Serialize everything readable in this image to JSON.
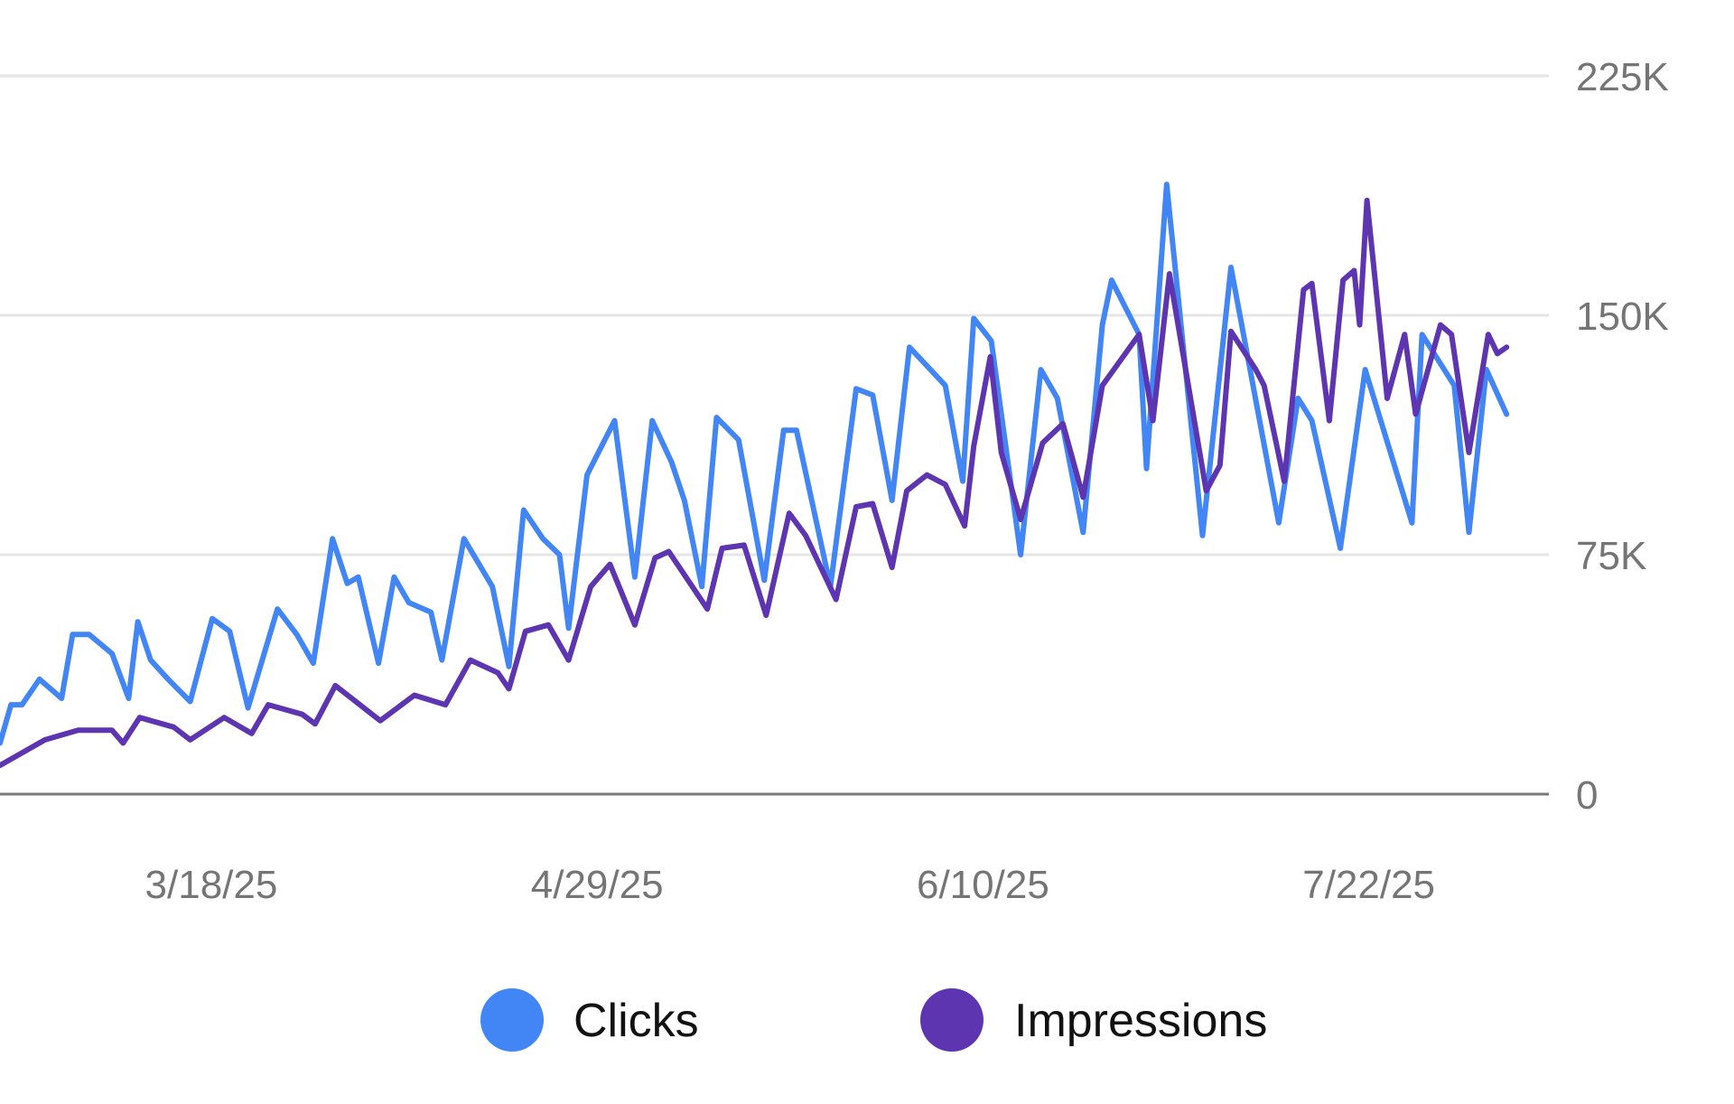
{
  "chart_data": {
    "type": "line",
    "title": "",
    "xlabel": "",
    "ylabel": "",
    "x_unit": "days since 2025-02-23",
    "x_start_date": "2025-02-23",
    "xlim": [
      0,
      168.6
    ],
    "ylim": [
      0,
      225000
    ],
    "grid": true,
    "legend_position": "bottom",
    "y_ticks": [
      {
        "value": 0,
        "label": "0"
      },
      {
        "value": 75000,
        "label": "75K"
      },
      {
        "value": 150000,
        "label": "150K"
      },
      {
        "value": 225000,
        "label": "225K"
      }
    ],
    "x_ticks": [
      {
        "value": 23,
        "label": "3/18/25"
      },
      {
        "value": 65,
        "label": "4/29/25"
      },
      {
        "value": 107,
        "label": "6/10/25"
      },
      {
        "value": 149,
        "label": "7/22/25"
      }
    ],
    "series": [
      {
        "name": "Clicks",
        "color": "#4285F4",
        "points": [
          [
            0,
            16
          ],
          [
            1.2,
            28
          ],
          [
            2.4,
            28
          ],
          [
            4.3,
            36
          ],
          [
            6.7,
            30
          ],
          [
            7.9,
            50
          ],
          [
            9.7,
            50
          ],
          [
            12.2,
            44
          ],
          [
            14,
            30
          ],
          [
            15,
            54
          ],
          [
            16.4,
            42
          ],
          [
            18.3,
            36
          ],
          [
            20.7,
            29
          ],
          [
            23.1,
            55
          ],
          [
            25,
            51
          ],
          [
            27,
            27
          ],
          [
            30.2,
            58
          ],
          [
            32.3,
            50
          ],
          [
            34.1,
            41
          ],
          [
            36.2,
            80
          ],
          [
            37.8,
            66
          ],
          [
            39,
            68
          ],
          [
            41.2,
            41
          ],
          [
            42.9,
            68
          ],
          [
            44.5,
            60
          ],
          [
            46.9,
            57
          ],
          [
            48.1,
            42
          ],
          [
            50.5,
            80
          ],
          [
            53.6,
            65
          ],
          [
            55.4,
            40
          ],
          [
            57,
            89
          ],
          [
            59.1,
            80
          ],
          [
            60.9,
            75
          ],
          [
            61.9,
            52
          ],
          [
            63.9,
            100
          ],
          [
            66.9,
            117
          ],
          [
            69.1,
            68
          ],
          [
            71,
            117
          ],
          [
            73.1,
            104
          ],
          [
            74.5,
            92
          ],
          [
            76.4,
            65
          ],
          [
            78,
            118
          ],
          [
            80.4,
            111
          ],
          [
            83.2,
            67
          ],
          [
            85.3,
            114
          ],
          [
            86.7,
            114
          ],
          [
            90.4,
            65
          ],
          [
            93.2,
            127
          ],
          [
            95,
            125
          ],
          [
            97.1,
            92
          ],
          [
            99,
            140
          ],
          [
            102.9,
            128
          ],
          [
            104.8,
            98
          ],
          [
            106,
            149
          ],
          [
            107.9,
            142
          ],
          [
            111.1,
            75
          ],
          [
            113.3,
            133
          ],
          [
            115.1,
            124
          ],
          [
            117.9,
            82
          ],
          [
            120,
            147
          ],
          [
            121,
            161
          ],
          [
            124,
            144
          ],
          [
            124.8,
            102
          ],
          [
            127,
            191
          ],
          [
            130.9,
            81
          ],
          [
            134,
            165
          ],
          [
            139.2,
            85
          ],
          [
            141.3,
            124
          ],
          [
            142.8,
            117
          ],
          [
            145.9,
            77
          ],
          [
            148.6,
            133
          ],
          [
            153.7,
            85
          ],
          [
            154.8,
            144
          ],
          [
            158.3,
            128
          ],
          [
            159.9,
            82
          ],
          [
            161.8,
            133
          ],
          [
            164,
            119
          ]
        ],
        "value_unit": "thousands"
      },
      {
        "name": "Impressions",
        "color": "#5E35B1",
        "points": [
          [
            0,
            9
          ],
          [
            4.9,
            17
          ],
          [
            8.5,
            20
          ],
          [
            12.2,
            20
          ],
          [
            13.4,
            16
          ],
          [
            15.2,
            24
          ],
          [
            18.9,
            21
          ],
          [
            20.7,
            17
          ],
          [
            24.4,
            24
          ],
          [
            27.4,
            19
          ],
          [
            29.2,
            28
          ],
          [
            32.9,
            25
          ],
          [
            34.3,
            22
          ],
          [
            36.5,
            34
          ],
          [
            41.4,
            23
          ],
          [
            45.1,
            31
          ],
          [
            48.5,
            28
          ],
          [
            51.2,
            42
          ],
          [
            54.2,
            38
          ],
          [
            55.4,
            33
          ],
          [
            57.2,
            51
          ],
          [
            59.7,
            53
          ],
          [
            61.9,
            42
          ],
          [
            64.3,
            65
          ],
          [
            66.4,
            72
          ],
          [
            69.1,
            53
          ],
          [
            71.3,
            74
          ],
          [
            72.8,
            76
          ],
          [
            74.9,
            67
          ],
          [
            77,
            58
          ],
          [
            78.6,
            77
          ],
          [
            81,
            78
          ],
          [
            83.4,
            56
          ],
          [
            85.9,
            88
          ],
          [
            87.7,
            81
          ],
          [
            91,
            61
          ],
          [
            93.2,
            90
          ],
          [
            95,
            91
          ],
          [
            97.1,
            71
          ],
          [
            98.7,
            95
          ],
          [
            100.9,
            100
          ],
          [
            102.9,
            97
          ],
          [
            105,
            84
          ],
          [
            106,
            109
          ],
          [
            107.8,
            137
          ],
          [
            109,
            107
          ],
          [
            111.1,
            86
          ],
          [
            113.5,
            110
          ],
          [
            115.7,
            116
          ],
          [
            117.9,
            93
          ],
          [
            120,
            128
          ],
          [
            124,
            144
          ],
          [
            125.5,
            117
          ],
          [
            127.3,
            163
          ],
          [
            131.3,
            95
          ],
          [
            132.8,
            103
          ],
          [
            134,
            145
          ],
          [
            136.7,
            133
          ],
          [
            137.6,
            128
          ],
          [
            139.8,
            98
          ],
          [
            141.9,
            158
          ],
          [
            142.8,
            160
          ],
          [
            144.7,
            117
          ],
          [
            146.2,
            161
          ],
          [
            147.4,
            164
          ],
          [
            148,
            147
          ],
          [
            148.8,
            186
          ],
          [
            151,
            124
          ],
          [
            152.9,
            144
          ],
          [
            154.1,
            119
          ],
          [
            156.8,
            147
          ],
          [
            158,
            144
          ],
          [
            159.9,
            107
          ],
          [
            162,
            144
          ],
          [
            163,
            138
          ],
          [
            164,
            140
          ]
        ],
        "value_unit": "thousands"
      }
    ]
  }
}
